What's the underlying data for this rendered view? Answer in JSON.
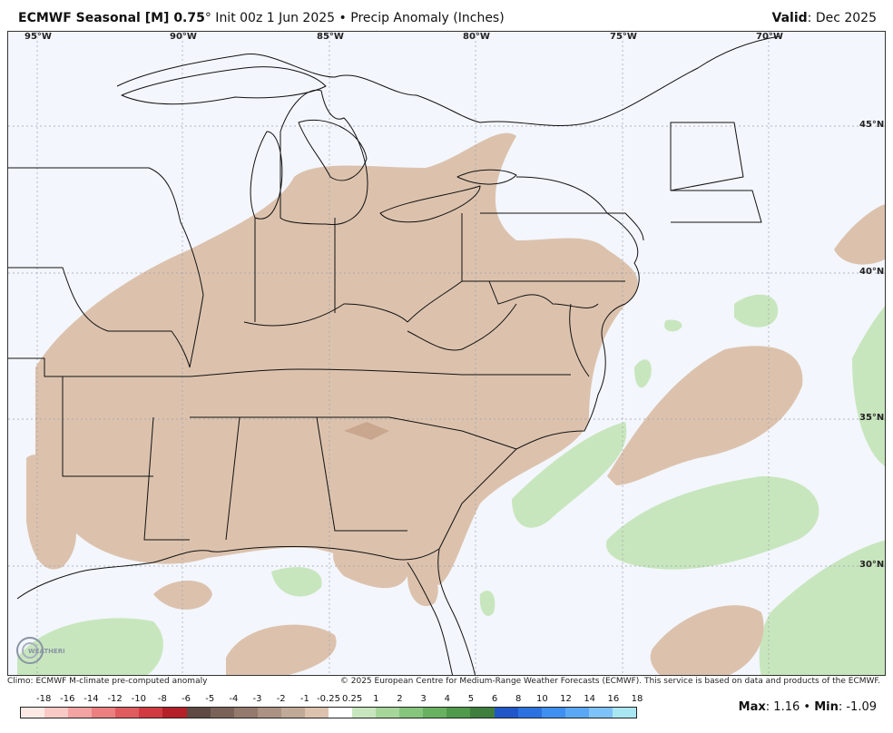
{
  "header": {
    "product": "ECMWF Seasonal [M] 0.75",
    "degree": "°",
    "init": " Init 00z 1 Jun 2025",
    "bullet": " • ",
    "field": "Precip Anomaly (Inches)",
    "valid_label": "Valid",
    "valid_value": ": Dec 2025"
  },
  "map": {
    "lon_labels": [
      "95°W",
      "90°W",
      "85°W",
      "80°W",
      "75°W",
      "70°W"
    ],
    "lat_labels": [
      "45°N",
      "40°N",
      "35°N",
      "30°N"
    ],
    "colors": {
      "ocean": "#f3f6fd",
      "dry_anomaly": "#dcc2ad",
      "dry_anomaly_strong": "#c9a78f",
      "wet_anomaly": "#c8e6bd",
      "borders": "#111111"
    },
    "logo_text": "WEATHERBELL"
  },
  "footer": {
    "climo_note": "Climo: ECMWF M-climate pre-computed anomaly",
    "copyright": "© 2025 European Centre for Medium-Range Weather Forecasts (ECMWF). This service is based on data and products of the ECMWF."
  },
  "legend": {
    "ticks": [
      "-18",
      "-16",
      "-14",
      "-12",
      "-10",
      "-8",
      "-6",
      "-5",
      "-4",
      "-3",
      "-2",
      "-1",
      "-0.25",
      "0.25",
      "1",
      "2",
      "3",
      "4",
      "5",
      "6",
      "8",
      "10",
      "12",
      "14",
      "16",
      "18"
    ],
    "colors": [
      "#fde9e4",
      "#f9c9c6",
      "#f3a3a2",
      "#ec7f80",
      "#e05b5e",
      "#d13a40",
      "#b51f28",
      "#5e4a42",
      "#7a6258",
      "#937a6d",
      "#ab9283",
      "#c1a997",
      "#dcc2ad",
      "#ffffff",
      "#c8e6bd",
      "#a7d69a",
      "#86c57c",
      "#68b160",
      "#4f9a4b",
      "#3f7f3e",
      "#1f57c9",
      "#2b72e0",
      "#3f8ff0",
      "#5aa8f5",
      "#7dc2f8",
      "#a8e6f2"
    ]
  },
  "stats": {
    "max_label": "Max",
    "max_value": ": 1.16",
    "sep": " • ",
    "min_label": "Min",
    "min_value": ": -1.09"
  }
}
